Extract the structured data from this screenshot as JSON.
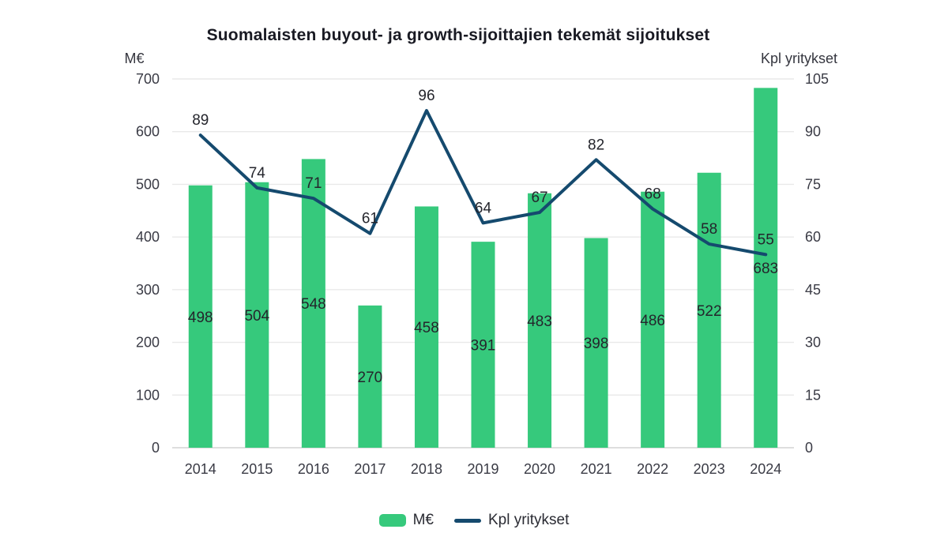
{
  "title": "Suomalaisten buyout- ja growth-sijoittajien tekemät sijoitukset",
  "left_axis_unit": "M€",
  "right_axis_unit": "Kpl yritykset",
  "legend": {
    "bar_label": "M€",
    "line_label": "Kpl yritykset"
  },
  "colors": {
    "bar": "#36c97c",
    "line": "#154a6e",
    "grid": "#e9e9e9",
    "baseline": "#dedede",
    "title_text": "#191a23",
    "tick_text": "#3a3b45",
    "data_label_text": "#24252c"
  },
  "chart_data": {
    "type": "bar",
    "subtype": "bar+line-combo",
    "title": "Suomalaisten buyout- ja growth-sijoittajien tekemät sijoitukset",
    "categories": [
      "2014",
      "2015",
      "2016",
      "2017",
      "2018",
      "2019",
      "2020",
      "2021",
      "2022",
      "2023",
      "2024"
    ],
    "series": [
      {
        "name": "M€",
        "type": "bar",
        "axis": "left",
        "values": [
          498,
          504,
          548,
          270,
          458,
          391,
          483,
          398,
          486,
          522,
          683
        ]
      },
      {
        "name": "Kpl yritykset",
        "type": "line",
        "axis": "right",
        "values": [
          89,
          74,
          71,
          61,
          96,
          64,
          67,
          82,
          68,
          58,
          55
        ]
      }
    ],
    "left_axis": {
      "label": "M€",
      "min": 0,
      "max": 700,
      "step": 100
    },
    "right_axis": {
      "label": "Kpl yritykset",
      "min": 0,
      "max": 105,
      "step": 15
    },
    "grid": true,
    "data_labels": true,
    "legend_position": "bottom"
  }
}
